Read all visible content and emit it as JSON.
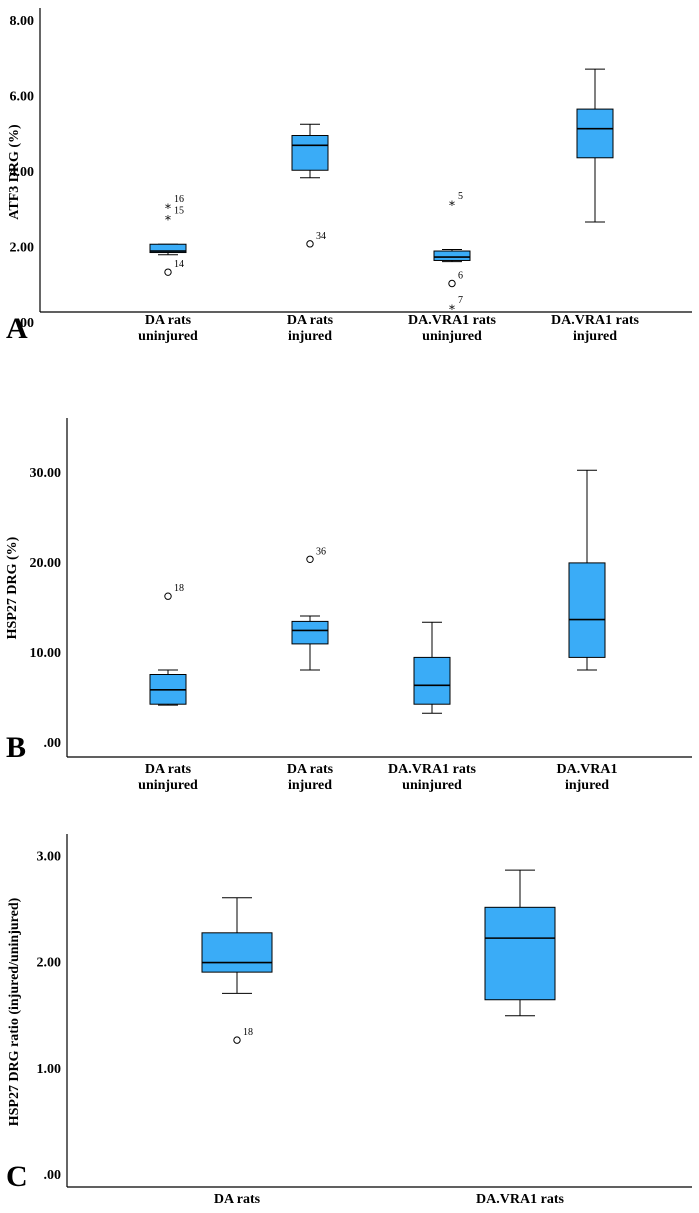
{
  "colors": {
    "box_fill": "#3aacf7",
    "stroke": "#000000",
    "background": "#ffffff"
  },
  "chart_data": [
    {
      "panel": "A",
      "type": "boxplot",
      "ylabel": "ATF3 DRG (%)",
      "ylim": [
        0,
        8
      ],
      "yticks": [
        0,
        2,
        4,
        6,
        8
      ],
      "ytick_labels": [
        ".00",
        "2.00",
        "4.00",
        "6.00",
        "8.00"
      ],
      "categories": [
        [
          "DA rats",
          "uninjured"
        ],
        [
          "DA rats",
          "injured"
        ],
        [
          "DA.VRA1 rats",
          "uninjured"
        ],
        [
          "DA.VRA1 rats",
          "injured"
        ]
      ],
      "boxes": [
        {
          "whisker_low": 1.78,
          "q1": 1.84,
          "median": 1.88,
          "q3": 2.06,
          "whisker_high": 2.06,
          "outliers": [
            {
              "value": 1.32,
              "label": "14",
              "marker": "circle"
            }
          ],
          "extremes": [
            {
              "value": 3.12,
              "label": "16",
              "marker": "star"
            },
            {
              "value": 2.82,
              "label": "15",
              "marker": "star"
            }
          ]
        },
        {
          "whisker_low": 3.82,
          "q1": 4.02,
          "median": 4.68,
          "q3": 4.94,
          "whisker_high": 5.24,
          "outliers": [
            {
              "value": 2.07,
              "label": "34",
              "marker": "circle"
            }
          ],
          "extremes": []
        },
        {
          "whisker_low": 1.6,
          "q1": 1.63,
          "median": 1.72,
          "q3": 1.88,
          "whisker_high": 1.92,
          "outliers": [
            {
              "value": 1.02,
              "label": "6",
              "marker": "circle"
            }
          ],
          "extremes": [
            {
              "value": 3.2,
              "label": "5",
              "marker": "star"
            },
            {
              "value": 0.45,
              "label": "7",
              "marker": "star"
            }
          ]
        },
        {
          "whisker_low": 2.65,
          "q1": 4.35,
          "median": 5.12,
          "q3": 5.64,
          "whisker_high": 6.7,
          "outliers": [],
          "extremes": []
        }
      ],
      "panel_label": "A"
    },
    {
      "panel": "B",
      "type": "boxplot",
      "ylabel": "HSP27 DRG (%)",
      "ylim": [
        0,
        36
      ],
      "yticks": [
        0,
        10,
        20,
        30
      ],
      "ytick_labels": [
        ".00",
        "10.00",
        "20.00",
        "30.00"
      ],
      "categories": [
        [
          "DA rats",
          "uninjured"
        ],
        [
          "DA rats",
          "injured"
        ],
        [
          "DA.VRA1 rats",
          "uninjured"
        ],
        [
          "DA.VRA1",
          "injured"
        ]
      ],
      "boxes": [
        {
          "whisker_low": 4.1,
          "q1": 4.2,
          "median": 5.8,
          "q3": 7.5,
          "whisker_high": 8.0,
          "outliers": [
            {
              "value": 16.2,
              "label": "18",
              "marker": "circle"
            }
          ],
          "extremes": []
        },
        {
          "whisker_low": 8.0,
          "q1": 10.9,
          "median": 12.4,
          "q3": 13.4,
          "whisker_high": 14.0,
          "outliers": [
            {
              "value": 20.3,
              "label": "36",
              "marker": "circle"
            }
          ],
          "extremes": []
        },
        {
          "whisker_low": 3.2,
          "q1": 4.2,
          "median": 6.3,
          "q3": 9.4,
          "whisker_high": 13.3,
          "outliers": [],
          "extremes": []
        },
        {
          "whisker_low": 8.0,
          "q1": 9.4,
          "median": 13.6,
          "q3": 19.9,
          "whisker_high": 30.2,
          "outliers": [],
          "extremes": []
        }
      ],
      "panel_label": "B"
    },
    {
      "panel": "C",
      "type": "boxplot",
      "ylabel": "HSP27 DRG ratio (injured/uninjured)",
      "ylim": [
        0,
        3.2
      ],
      "yticks": [
        0,
        1,
        2,
        3
      ],
      "ytick_labels": [
        ".00",
        "1.00",
        "2.00",
        "3.00"
      ],
      "categories": [
        [
          "DA rats"
        ],
        [
          "DA.VRA1 rats"
        ]
      ],
      "boxes": [
        {
          "whisker_low": 1.7,
          "q1": 1.9,
          "median": 1.99,
          "q3": 2.27,
          "whisker_high": 2.6,
          "outliers": [
            {
              "value": 1.26,
              "label": "18",
              "marker": "circle"
            }
          ],
          "extremes": []
        },
        {
          "whisker_low": 1.49,
          "q1": 1.64,
          "median": 2.22,
          "q3": 2.51,
          "whisker_high": 2.86,
          "outliers": [],
          "extremes": []
        }
      ],
      "panel_label": "C"
    }
  ]
}
